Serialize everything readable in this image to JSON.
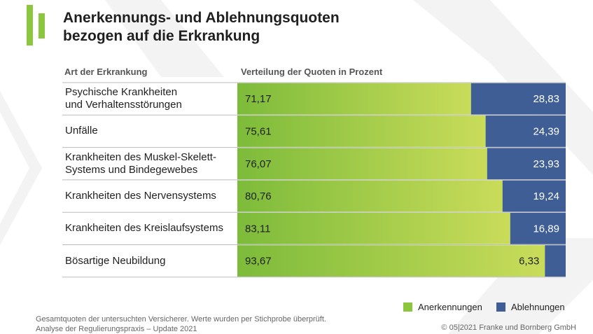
{
  "title": {
    "line1": "Anerkennungs- und Ablehnungsquoten",
    "line2": "bezogen auf die Erkrankung"
  },
  "columns": {
    "category_header": "Art der Erkrankung",
    "values_header": "Verteilung der Quoten in Prozent"
  },
  "chart_data": {
    "type": "bar",
    "stacked": true,
    "orientation": "horizontal",
    "title": "Anerkennungs- und Ablehnungsquoten bezogen auf die Erkrankung",
    "xlabel": "Verteilung der Quoten in Prozent",
    "ylabel": "Art der Erkrankung",
    "xlim": [
      0,
      100
    ],
    "categories": [
      "Psychische Krankheiten\nund Verhaltensstörungen",
      "Unfälle",
      "Krankheiten des Muskel-Skelett-\nSystems und Bindegewebes",
      "Krankheiten des Nervensystems",
      "Krankheiten des Kreislaufsystems",
      "Bösartige Neubildung"
    ],
    "series": [
      {
        "name": "Anerkennungen",
        "color": "#8cc63f",
        "values": [
          71.17,
          75.61,
          76.07,
          80.76,
          83.11,
          93.67
        ],
        "labels": [
          "71,17",
          "75,61",
          "76,07",
          "80,76",
          "83,11",
          "93,67"
        ]
      },
      {
        "name": "Ablehnungen",
        "color": "#3f5e95",
        "values": [
          28.83,
          24.39,
          23.93,
          19.24,
          16.89,
          6.33
        ],
        "labels": [
          "28,83",
          "24,39",
          "23,93",
          "19,24",
          "16,89",
          "6,33"
        ]
      }
    ],
    "legend_position": "bottom-right"
  },
  "legend": {
    "items": [
      {
        "label": "Anerkennungen",
        "color": "#8cc63f"
      },
      {
        "label": "Ablehnungen",
        "color": "#3f5e95"
      }
    ]
  },
  "footnote": {
    "line1": "Gesamtquoten der untersuchten Versicherer. Werte wurden per Stichprobe überprüft.",
    "line2": "Analyse der Regulierungspraxis – Update 2021"
  },
  "copyright": "© 05|2021 Franke und Bornberg GmbH",
  "colors": {
    "accent_green": "#8cc63f",
    "accent_blue": "#3f5e95"
  }
}
